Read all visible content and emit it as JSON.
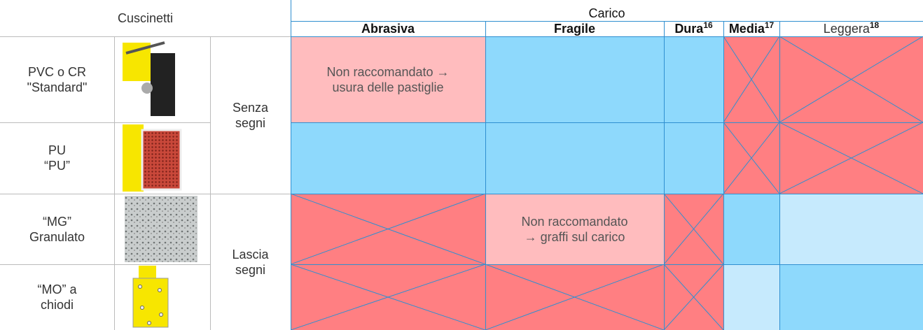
{
  "header": {
    "left": "Cuscinetti",
    "right": "Carico",
    "columns": [
      {
        "label": "Abrasiva"
      },
      {
        "label": "Fragile"
      },
      {
        "label": "Dura",
        "note": "16"
      },
      {
        "label": "Media",
        "note": "17"
      },
      {
        "label": "Leggera",
        "note": "18"
      }
    ]
  },
  "rows": [
    {
      "label": [
        "PVC o CR",
        "\"Standard\""
      ]
    },
    {
      "label": [
        "PU",
        "“PU”"
      ]
    },
    {
      "label": [
        "“MG”",
        "Granulato"
      ]
    },
    {
      "label": [
        "“MO” a",
        "chiodi"
      ]
    }
  ],
  "groups": [
    [
      "Senza",
      "segni"
    ],
    [
      "Lascia",
      "segni"
    ]
  ],
  "cells": {
    "abrasiva_row1": [
      "Non raccomandato →",
      "usura delle pastiglie"
    ],
    "fragile_row3": [
      "Non raccomandato",
      "→ graffi sul carico"
    ]
  }
}
